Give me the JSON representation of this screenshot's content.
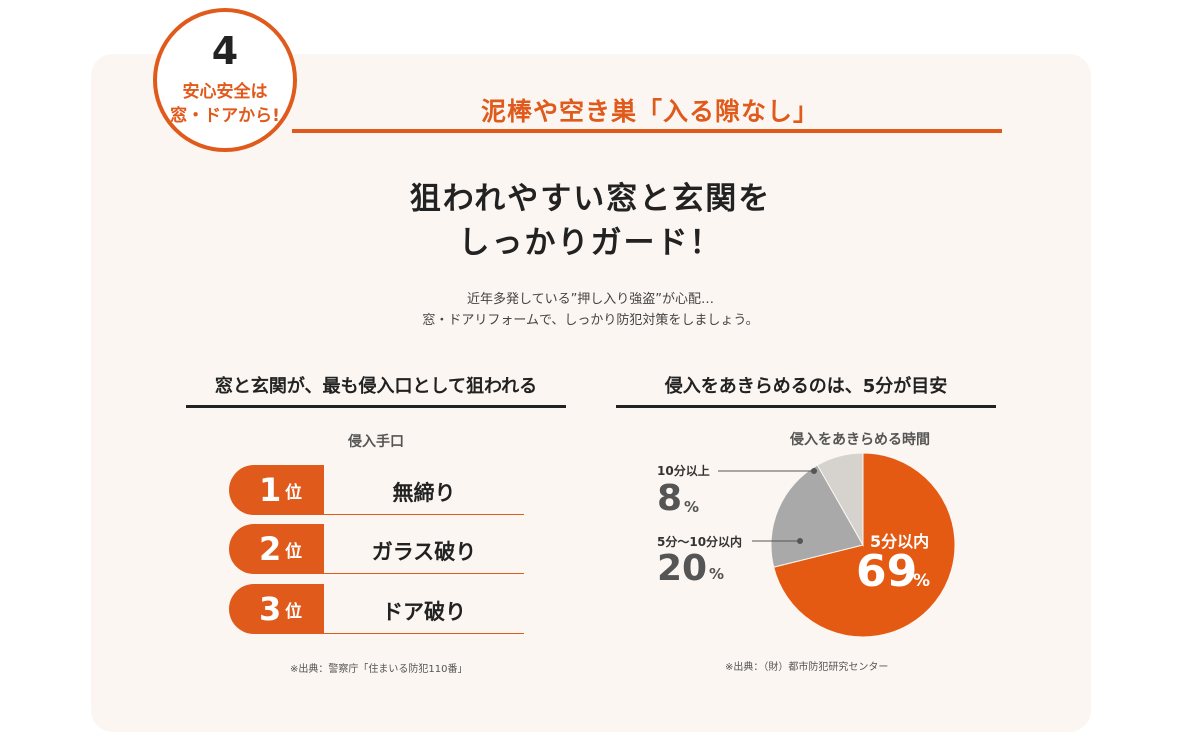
{
  "badge": {
    "number": "4",
    "line1": "安心安全は",
    "line2": "窓・ドアから!"
  },
  "header": {
    "title": "泥棒や空き巣「入る隙なし」"
  },
  "main": {
    "title_line1": "狙われやすい窓と玄関を",
    "title_line2": "しっかりガード！",
    "lead_line1": "近年多発している”押し入り強盗”が心配…",
    "lead_line2": "窓・ドアリフォームで、しっかり防犯対策をしましょう。"
  },
  "left": {
    "section_title": "窓と玄関が、最も侵入口として狙われる",
    "subtitle": "侵入手口",
    "rank_suffix": "位",
    "ranks": [
      {
        "num": "1",
        "label": "無締り"
      },
      {
        "num": "2",
        "label": "ガラス破り"
      },
      {
        "num": "3",
        "label": "ドア破り"
      }
    ],
    "source": "※出典：警察庁「住まいる防犯110番」"
  },
  "right": {
    "section_title": "侵入をあきらめるのは、5分が目安",
    "source": "※出典：（財）都市防犯研究センター"
  },
  "chart_data": {
    "type": "pie",
    "title": "侵入をあきらめる時間",
    "categories": [
      "5分以内",
      "5分〜10分以内",
      "10分以上"
    ],
    "values": [
      69,
      20,
      8
    ],
    "unit": "%",
    "colors": [
      "#e55a12",
      "#a9a9a9",
      "#d6d3cf"
    ]
  }
}
